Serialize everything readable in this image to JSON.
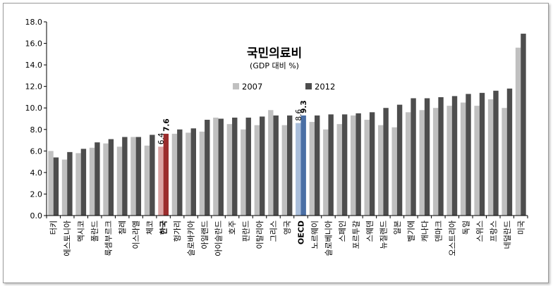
{
  "chart_data": {
    "type": "bar",
    "title": "국민의료비",
    "subtitle": "(GDP 대비 %)",
    "xlabel": "",
    "ylabel": "",
    "ylim": [
      0,
      18
    ],
    "yticks": [
      "0.0",
      "2.0",
      "4.0",
      "6.0",
      "8.0",
      "10.0",
      "12.0",
      "14.0",
      "16.0",
      "18.0"
    ],
    "grid": false,
    "legend_position": "top-center",
    "colors": {
      "2007": "#c0c0c0",
      "2012": "#4d4d4d",
      "korea_2007": "#dca5a5",
      "korea_2012": "#9b2d2d",
      "oecd_2007": "#a9bedb",
      "oecd_2012": "#4a6fa5"
    },
    "categories": [
      "터키",
      "에스토니아",
      "멕시코",
      "폴란드",
      "룩셈부르크",
      "칠레",
      "이스라엘",
      "체코",
      "한국",
      "헝가리",
      "슬로바키아",
      "아일랜드",
      "아이슬란드",
      "호주",
      "핀란드",
      "이탈리아",
      "그리스",
      "영국",
      "OECD",
      "노르웨이",
      "슬로베니아",
      "스페인",
      "포르투갈",
      "스웨덴",
      "뉴질랜드",
      "일본",
      "벨기에",
      "캐나다",
      "덴마크",
      "오스트리아",
      "독일",
      "스위스",
      "프랑스",
      "네덜란드",
      "미국"
    ],
    "highlight": {
      "한국": "korea",
      "OECD": "oecd"
    },
    "series": [
      {
        "name": "2007",
        "values": [
          6.0,
          5.2,
          5.8,
          6.3,
          6.7,
          6.4,
          7.3,
          6.5,
          6.4,
          7.6,
          7.7,
          7.8,
          9.1,
          8.5,
          8.0,
          8.4,
          9.8,
          8.4,
          8.6,
          8.7,
          8.0,
          8.5,
          9.3,
          8.9,
          8.4,
          8.2,
          9.6,
          9.8,
          10.0,
          10.2,
          10.5,
          10.2,
          10.8,
          10.0,
          15.6
        ]
      },
      {
        "name": "2012",
        "values": [
          5.4,
          5.9,
          6.2,
          6.8,
          7.1,
          7.3,
          7.3,
          7.5,
          7.6,
          8.0,
          8.1,
          8.9,
          9.0,
          9.1,
          9.1,
          9.2,
          9.3,
          9.3,
          9.3,
          9.3,
          9.4,
          9.4,
          9.5,
          9.6,
          10.0,
          10.3,
          10.9,
          10.9,
          11.0,
          11.1,
          11.3,
          11.4,
          11.6,
          11.8,
          16.9
        ]
      }
    ],
    "data_labels": [
      {
        "category": "한국",
        "series": "2007",
        "text": "6.4"
      },
      {
        "category": "한국",
        "series": "2012",
        "text": "7.6"
      },
      {
        "category": "OECD",
        "series": "2007",
        "text": "8.6"
      },
      {
        "category": "OECD",
        "series": "2012",
        "text": "9.3"
      }
    ]
  }
}
